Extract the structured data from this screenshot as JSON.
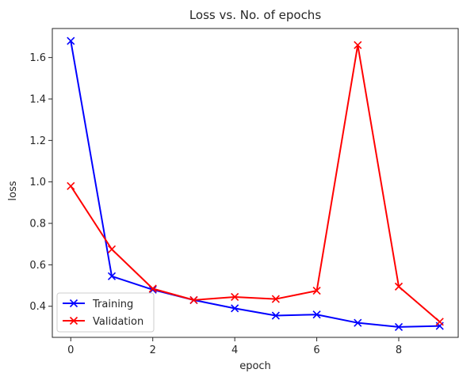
{
  "chart_data": {
    "type": "line",
    "title": "Loss vs. No. of epochs",
    "xlabel": "epoch",
    "ylabel": "loss",
    "xlim": [
      -0.45,
      9.45
    ],
    "ylim": [
      0.25,
      1.74
    ],
    "xticks": [
      0,
      2,
      4,
      6,
      8
    ],
    "yticks": [
      0.4,
      0.6,
      0.8,
      1.0,
      1.2,
      1.4,
      1.6
    ],
    "ytick_labels": [
      "0.4",
      "0.6",
      "0.8",
      "1.0",
      "1.2",
      "1.4",
      "1.6"
    ],
    "grid": false,
    "legend_position": "lower-left",
    "x": [
      0,
      1,
      2,
      3,
      4,
      5,
      6,
      7,
      8,
      9
    ],
    "series": [
      {
        "name": "Training",
        "color": "#0000ff",
        "marker": "x",
        "values": [
          1.68,
          0.545,
          0.48,
          0.43,
          0.39,
          0.355,
          0.36,
          0.32,
          0.3,
          0.305
        ]
      },
      {
        "name": "Validation",
        "color": "#ff0000",
        "marker": "x",
        "values": [
          0.98,
          0.675,
          0.485,
          0.43,
          0.445,
          0.435,
          0.475,
          1.66,
          0.495,
          0.325
        ]
      }
    ]
  }
}
